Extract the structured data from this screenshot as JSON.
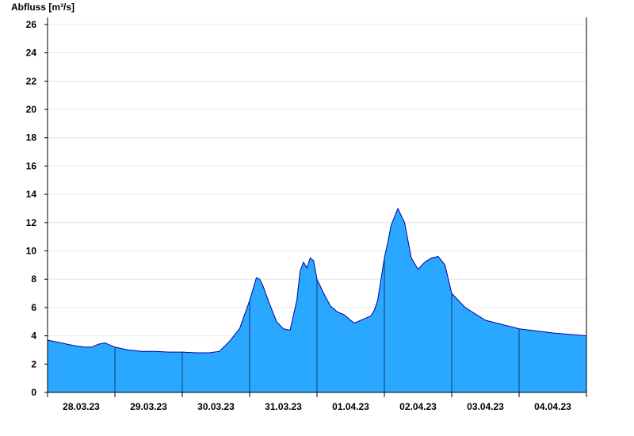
{
  "chart_data": {
    "type": "area",
    "ylabel": "Abfluss [m³/s]",
    "ylim": [
      0,
      26.5
    ],
    "xlim": [
      0,
      8
    ],
    "yticks": [
      "0",
      "2",
      "4",
      "6",
      "8",
      "10",
      "12",
      "14",
      "16",
      "18",
      "20",
      "22",
      "24",
      "26"
    ],
    "ytick_values": [
      0,
      2,
      4,
      6,
      8,
      10,
      12,
      14,
      16,
      18,
      20,
      22,
      24,
      26
    ],
    "day_labels": [
      "28.03.23",
      "29.03.23",
      "30.03.23",
      "31.03.23",
      "01.04.23",
      "02.04.23",
      "03.04.23",
      "04.04.23"
    ],
    "grid": "horizontal",
    "legend": "none",
    "colors": {
      "fill": "#2aa7ff",
      "line": "#0000a0",
      "grid": "#e6e6e6",
      "day_line": "#1a3a6a"
    },
    "series": [
      {
        "x": [
          0,
          0.2,
          0.4,
          0.55,
          0.65,
          0.75,
          0.85,
          1.0,
          1.2,
          1.4,
          1.6,
          1.8,
          2.0,
          2.2,
          2.4,
          2.55,
          2.7,
          2.85,
          3.0,
          3.1,
          3.15,
          3.2,
          3.3,
          3.4,
          3.5,
          3.6,
          3.7,
          3.75,
          3.8,
          3.85,
          3.9,
          3.95,
          4.0,
          4.1,
          4.2,
          4.3,
          4.4,
          4.5,
          4.55,
          4.6,
          4.7,
          4.8,
          4.85,
          4.9,
          4.95,
          5.0,
          5.05,
          5.1,
          5.2,
          5.3,
          5.4,
          5.5,
          5.6,
          5.7,
          5.8,
          5.9,
          6.0,
          6.2,
          6.5,
          7.0,
          7.5,
          8.0
        ],
        "y": [
          3.7,
          3.5,
          3.3,
          3.2,
          3.2,
          3.4,
          3.5,
          3.2,
          3.0,
          2.9,
          2.9,
          2.85,
          2.85,
          2.8,
          2.8,
          2.9,
          3.6,
          4.5,
          6.5,
          8.1,
          8.0,
          7.5,
          6.2,
          5.0,
          4.5,
          4.4,
          6.5,
          8.6,
          9.2,
          8.8,
          9.5,
          9.3,
          8.0,
          7.0,
          6.1,
          5.7,
          5.5,
          5.1,
          4.9,
          5.0,
          5.2,
          5.4,
          5.8,
          6.5,
          8.0,
          9.5,
          10.6,
          11.8,
          13.0,
          12.0,
          9.5,
          8.7,
          9.2,
          9.5,
          9.6,
          9.0,
          7.0,
          6.0,
          5.1,
          4.5,
          4.2,
          4.0
        ]
      }
    ]
  }
}
